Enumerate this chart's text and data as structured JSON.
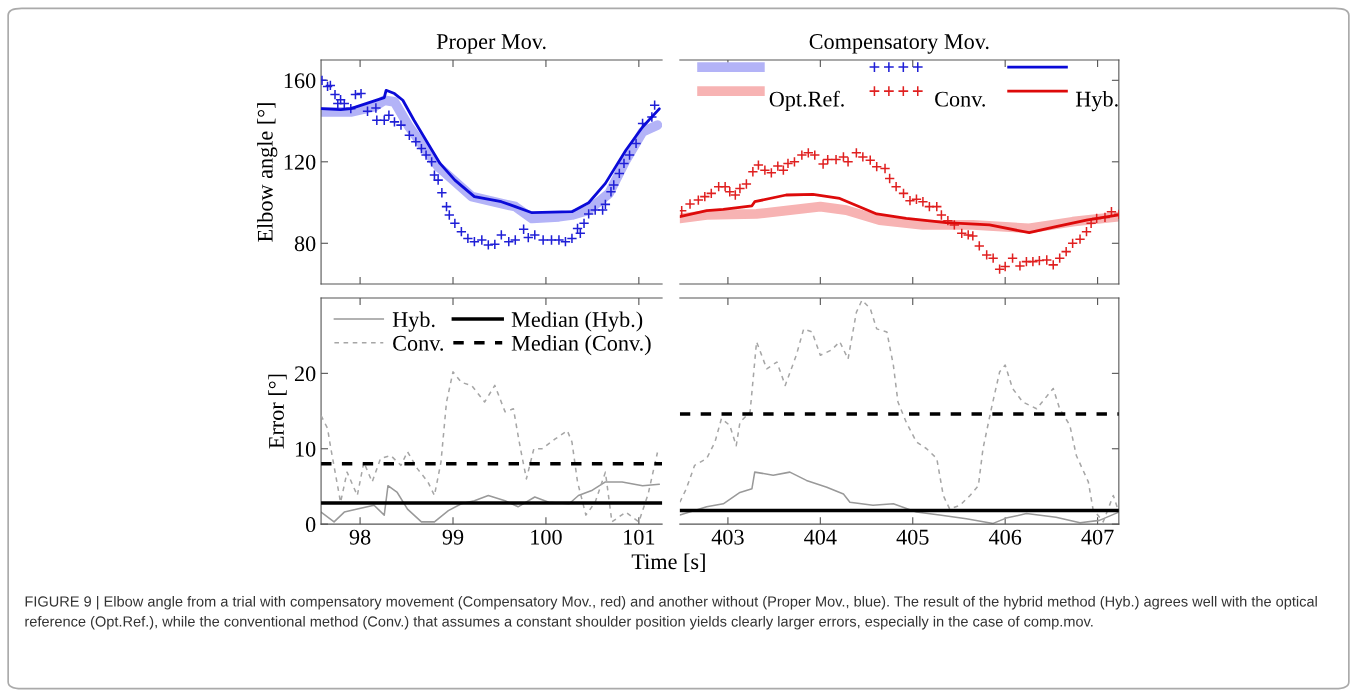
{
  "chart_data": [
    {
      "type": "line",
      "title": "Proper Mov.",
      "ylabel": "Elbow angle [°]",
      "xlim": [
        97.58,
        101.25
      ],
      "xticks": [
        98,
        99,
        100,
        101
      ],
      "ylim": [
        60,
        170
      ],
      "yticks": [
        80,
        120,
        160
      ],
      "tick_labels": "y",
      "series": [
        {
          "color": "#b3b3f7",
          "x": [
            97.58,
            97.9,
            98.15,
            98.26,
            98.37,
            98.53,
            98.84,
            99.2,
            99.52,
            99.67,
            99.85,
            100.14,
            100.28,
            100.46,
            100.68,
            100.86,
            101.04,
            101.2
          ],
          "values": [
            144.5,
            144.5,
            147,
            150.2,
            149.4,
            137,
            117.6,
            103,
            99.5,
            98,
            92.2,
            93,
            93.9,
            96.3,
            104.5,
            120.8,
            134.7,
            138
          ]
        },
        {
          "type": "scatter",
          "marker": "cross",
          "color": "#1f1fd6",
          "x": [
            97.59,
            97.65,
            97.68,
            97.73,
            97.76,
            97.79,
            97.83,
            97.9,
            97.95,
            98.01,
            98.08,
            98.17,
            98.18,
            98.26,
            98.31,
            98.37,
            98.44,
            98.53,
            98.6,
            98.66,
            98.71,
            98.77,
            98.8,
            98.84,
            98.88,
            98.93,
            98.96,
            99.02,
            99.09,
            99.16,
            99.23,
            99.31,
            99.38,
            99.45,
            99.52,
            99.6,
            99.67,
            99.76,
            99.81,
            99.88,
            99.97,
            100.06,
            100.14,
            100.21,
            100.28,
            100.34,
            100.37,
            100.41,
            100.46,
            100.53,
            100.61,
            100.64,
            100.7,
            100.73,
            100.79,
            100.84,
            100.9,
            100.97,
            101.04,
            101.14,
            101.17
          ],
          "values": [
            160,
            157,
            157.5,
            153,
            148.6,
            150.5,
            148.6,
            146.1,
            153,
            153.5,
            144.8,
            146.4,
            140.4,
            140.4,
            142.9,
            139.6,
            138,
            133,
            129.8,
            126.5,
            123.3,
            120,
            113.5,
            111,
            104.8,
            98,
            93.9,
            89.8,
            85.7,
            82.4,
            80.8,
            81.6,
            79.2,
            79.5,
            84.1,
            80.8,
            81.6,
            86.9,
            82.8,
            84.1,
            81.6,
            81.6,
            81.6,
            80.8,
            82.4,
            87.3,
            84.9,
            89.8,
            94.4,
            96.3,
            96.3,
            99.1,
            105.3,
            108.6,
            114.3,
            119.2,
            123.3,
            129,
            138.8,
            142,
            147.8
          ]
        },
        {
          "color": "#0a0ad8",
          "x": [
            97.58,
            97.79,
            97.9,
            98.26,
            98.28,
            98.37,
            98.46,
            98.58,
            98.73,
            98.86,
            99.02,
            99.23,
            99.52,
            99.67,
            99.85,
            100.28,
            100.46,
            100.64,
            100.86,
            101.04,
            101.22
          ],
          "values": [
            146.1,
            145.6,
            146.1,
            151.5,
            155.1,
            153.5,
            150.2,
            140.4,
            129,
            119.2,
            111,
            102.9,
            100.4,
            98,
            95,
            95.5,
            99.9,
            109.4,
            125.7,
            137.1,
            146
          ]
        }
      ]
    },
    {
      "type": "line",
      "title": "Compensatory Mov.",
      "xlim": [
        402.48,
        407.23
      ],
      "xticks": [
        403,
        404,
        405,
        406,
        407
      ],
      "ylim": [
        60,
        170
      ],
      "yticks": [
        80,
        120,
        160
      ],
      "tick_labels": false,
      "legend": "top left",
      "series": [
        {
          "name": "Opt.Ref.",
          "color": "#f7b3b3",
          "x": [
            402.48,
            402.77,
            403.31,
            404.0,
            404.28,
            404.64,
            405.11,
            405.65,
            406.26,
            406.73,
            407.23
          ],
          "values": [
            92.2,
            93.9,
            94.4,
            98,
            96.3,
            91.4,
            89,
            89,
            87.3,
            90.6,
            93.1
          ]
        },
        {
          "name": "Conv.",
          "type": "scatter",
          "marker": "cross",
          "color": "#e02020",
          "x": [
            402.5,
            402.59,
            402.68,
            402.75,
            402.82,
            402.9,
            402.97,
            403.02,
            403.08,
            403.13,
            403.2,
            403.27,
            403.33,
            403.4,
            403.47,
            403.54,
            403.6,
            403.65,
            403.72,
            403.8,
            403.87,
            403.94,
            404.03,
            404.08,
            404.17,
            404.25,
            404.3,
            404.39,
            404.46,
            404.54,
            404.61,
            404.7,
            404.75,
            404.82,
            404.9,
            404.97,
            405.04,
            405.11,
            405.18,
            405.26,
            405.31,
            405.38,
            405.45,
            405.53,
            405.6,
            405.65,
            405.72,
            405.8,
            405.87,
            405.94,
            406.0,
            406.08,
            406.16,
            406.23,
            406.3,
            406.37,
            406.45,
            406.52,
            406.59,
            406.66,
            406.73,
            406.81,
            406.88,
            406.93,
            406.99,
            407.08,
            407.15,
            407.23
          ],
          "values": [
            96,
            99.3,
            101.2,
            102.9,
            104.5,
            107.8,
            107.8,
            105.3,
            103.7,
            106.9,
            109.1,
            115.1,
            118.4,
            115.9,
            114.6,
            117.9,
            115.9,
            119.2,
            120,
            123.3,
            124.4,
            123.3,
            118.9,
            121.1,
            121.1,
            122.4,
            120,
            124.4,
            122.4,
            120.8,
            117.6,
            116.7,
            111.8,
            107.8,
            104.5,
            100.9,
            101.6,
            100.4,
            98,
            98,
            93.9,
            91.1,
            89,
            84.9,
            84.1,
            83.6,
            78.7,
            74.3,
            72.7,
            67.3,
            68.6,
            72.7,
            68.9,
            71,
            71,
            71.5,
            71.8,
            69.4,
            72.7,
            75.9,
            80,
            82,
            85.7,
            89.8,
            92.2,
            92.7,
            95.5,
            94.2
          ]
        },
        {
          "name": "Hyb.",
          "color": "#dd0a0a",
          "x": [
            402.48,
            402.77,
            402.95,
            403.26,
            403.29,
            403.63,
            403.92,
            404.21,
            404.61,
            404.93,
            405.36,
            405.83,
            406.26,
            406.55,
            406.88,
            407.23
          ],
          "values": [
            93.1,
            96,
            96.7,
            98.4,
            100.4,
            103.7,
            104,
            102,
            94.4,
            92.2,
            90.1,
            89,
            85.2,
            88.2,
            91.4,
            93.9
          ]
        }
      ]
    },
    {
      "type": "line",
      "ylabel": "Error [°]",
      "xlabel": "Time [s]",
      "xlim": [
        97.58,
        101.25
      ],
      "xticks": [
        98,
        99,
        100,
        101
      ],
      "ylim": [
        0,
        30
      ],
      "yticks": [
        0,
        10,
        20
      ],
      "legend": "top left",
      "series": [
        {
          "name": "Hyb.",
          "color": "#999999",
          "line_style": "solid",
          "x": [
            97.58,
            97.72,
            97.83,
            97.97,
            98.15,
            98.26,
            98.3,
            98.4,
            98.51,
            98.66,
            98.8,
            98.95,
            99.09,
            99.23,
            99.38,
            99.56,
            99.7,
            99.88,
            100.03,
            100.25,
            100.35,
            100.5,
            100.64,
            100.82,
            101.04,
            101.22
          ],
          "values": [
            1.6,
            0.3,
            1.6,
            2,
            2.5,
            1.2,
            5.1,
            4.2,
            2,
            0.3,
            0.3,
            1.8,
            2.7,
            3.1,
            3.8,
            3.1,
            2.3,
            3.6,
            2.9,
            2.7,
            3.8,
            4.5,
            5.6,
            5.6,
            5.1,
            5.3
          ]
        },
        {
          "name": "Conv.",
          "color": "#a6a6a6",
          "line_style": "dashed",
          "x": [
            97.58,
            97.65,
            97.68,
            97.75,
            97.79,
            97.86,
            97.97,
            98.04,
            98.13,
            98.22,
            98.33,
            98.44,
            98.51,
            98.62,
            98.73,
            98.8,
            98.87,
            98.93,
            99.0,
            99.09,
            99.2,
            99.34,
            99.45,
            99.56,
            99.65,
            99.72,
            99.79,
            99.87,
            99.96,
            100.1,
            100.23,
            100.28,
            100.34,
            100.43,
            100.53,
            100.64,
            100.71,
            100.86,
            101.0,
            101.1,
            101.2
          ],
          "values": [
            14.4,
            12.7,
            10.4,
            5.6,
            2.9,
            6.9,
            3.8,
            8.2,
            5.6,
            8.7,
            9.1,
            7.8,
            9.6,
            7.3,
            5.6,
            3.8,
            8.2,
            16.2,
            20.2,
            18.8,
            18.4,
            16.2,
            18.4,
            14.9,
            15.3,
            10.4,
            6,
            10,
            10,
            11.3,
            12.4,
            10.9,
            5.6,
            1.2,
            2.9,
            6.9,
            0.3,
            1.6,
            0.3,
            4,
            9.5
          ]
        }
      ],
      "ref_lines": [
        {
          "axis": "y",
          "value": 2.8,
          "label": "Median (Hyb.)",
          "color": "#000000",
          "line_style": "solid"
        },
        {
          "axis": "y",
          "value": 8,
          "label": "Median (Conv.)",
          "color": "#000000",
          "line_style": "dashed"
        }
      ]
    },
    {
      "type": "line",
      "xlim": [
        402.48,
        407.23
      ],
      "xticks": [
        403,
        404,
        405,
        406,
        407
      ],
      "ylim": [
        0,
        30
      ],
      "yticks": [
        0,
        10,
        20
      ],
      "tick_labels": "x",
      "series": [
        {
          "color": "#999999",
          "line_style": "solid",
          "x": [
            402.48,
            402.77,
            402.95,
            403.13,
            403.26,
            403.29,
            403.49,
            403.67,
            403.85,
            404.07,
            404.25,
            404.32,
            404.57,
            404.79,
            405.04,
            405.29,
            405.58,
            405.87,
            406.01,
            406.23,
            406.55,
            406.81,
            407.02,
            407.23
          ],
          "values": [
            1.2,
            2.3,
            2.7,
            4.2,
            4.7,
            6.9,
            6.5,
            6.9,
            5.8,
            4.9,
            4,
            2.9,
            2.5,
            2.7,
            1.6,
            1.2,
            0.7,
            0.1,
            0.8,
            1.4,
            0.9,
            0.2,
            0.5,
            1.6
          ]
        },
        {
          "color": "#a6a6a6",
          "line_style": "dashed",
          "x": [
            402.48,
            402.55,
            402.64,
            402.77,
            402.86,
            402.93,
            403.02,
            403.09,
            403.13,
            403.24,
            403.31,
            403.42,
            403.53,
            403.62,
            403.74,
            403.82,
            403.91,
            404.0,
            404.12,
            404.21,
            404.3,
            404.39,
            404.45,
            404.54,
            404.61,
            404.72,
            404.79,
            404.84,
            404.93,
            405.04,
            405.15,
            405.26,
            405.33,
            405.4,
            405.51,
            405.62,
            405.71,
            405.76,
            405.85,
            405.94,
            406.0,
            406.08,
            406.19,
            406.34,
            406.52,
            406.59,
            406.7,
            406.77,
            406.9,
            406.95,
            407.06,
            407.17,
            407.23
          ],
          "values": [
            2.9,
            4.7,
            7.8,
            8.7,
            10.9,
            14,
            13.1,
            10.4,
            13.5,
            14.9,
            24.2,
            20.6,
            21.5,
            18.4,
            22.4,
            25.9,
            25.5,
            22.4,
            23.1,
            24.2,
            21.9,
            28.1,
            29.7,
            28.6,
            25.9,
            25.5,
            21.1,
            16.2,
            13.5,
            10.9,
            10,
            8.7,
            3.8,
            2,
            2.5,
            3.8,
            5.1,
            10,
            15.3,
            20.2,
            21.1,
            18,
            16.2,
            15.3,
            18,
            15.3,
            13.1,
            9.1,
            5.6,
            2,
            0.3,
            3.8,
            1.6
          ]
        }
      ],
      "ref_lines": [
        {
          "axis": "y",
          "value": 14.6,
          "color": "#000000",
          "line_style": "dashed"
        },
        {
          "axis": "y",
          "value": 1.8,
          "color": "#000000",
          "line_style": "solid"
        }
      ],
      "annotations": [
        "FIGURE 9 | Elbow angle from a trial with compensatory movement (Compensatory Mov., red) and another without (Proper Mov., blue). The result of the hybrid method (Hyb.) agrees well with the optical reference (Opt.Ref.), while the conventional method (Conv.) that assumes a constant shoulder position yields clearly larger errors, especially in the case of comp.mov."
      ]
    }
  ]
}
